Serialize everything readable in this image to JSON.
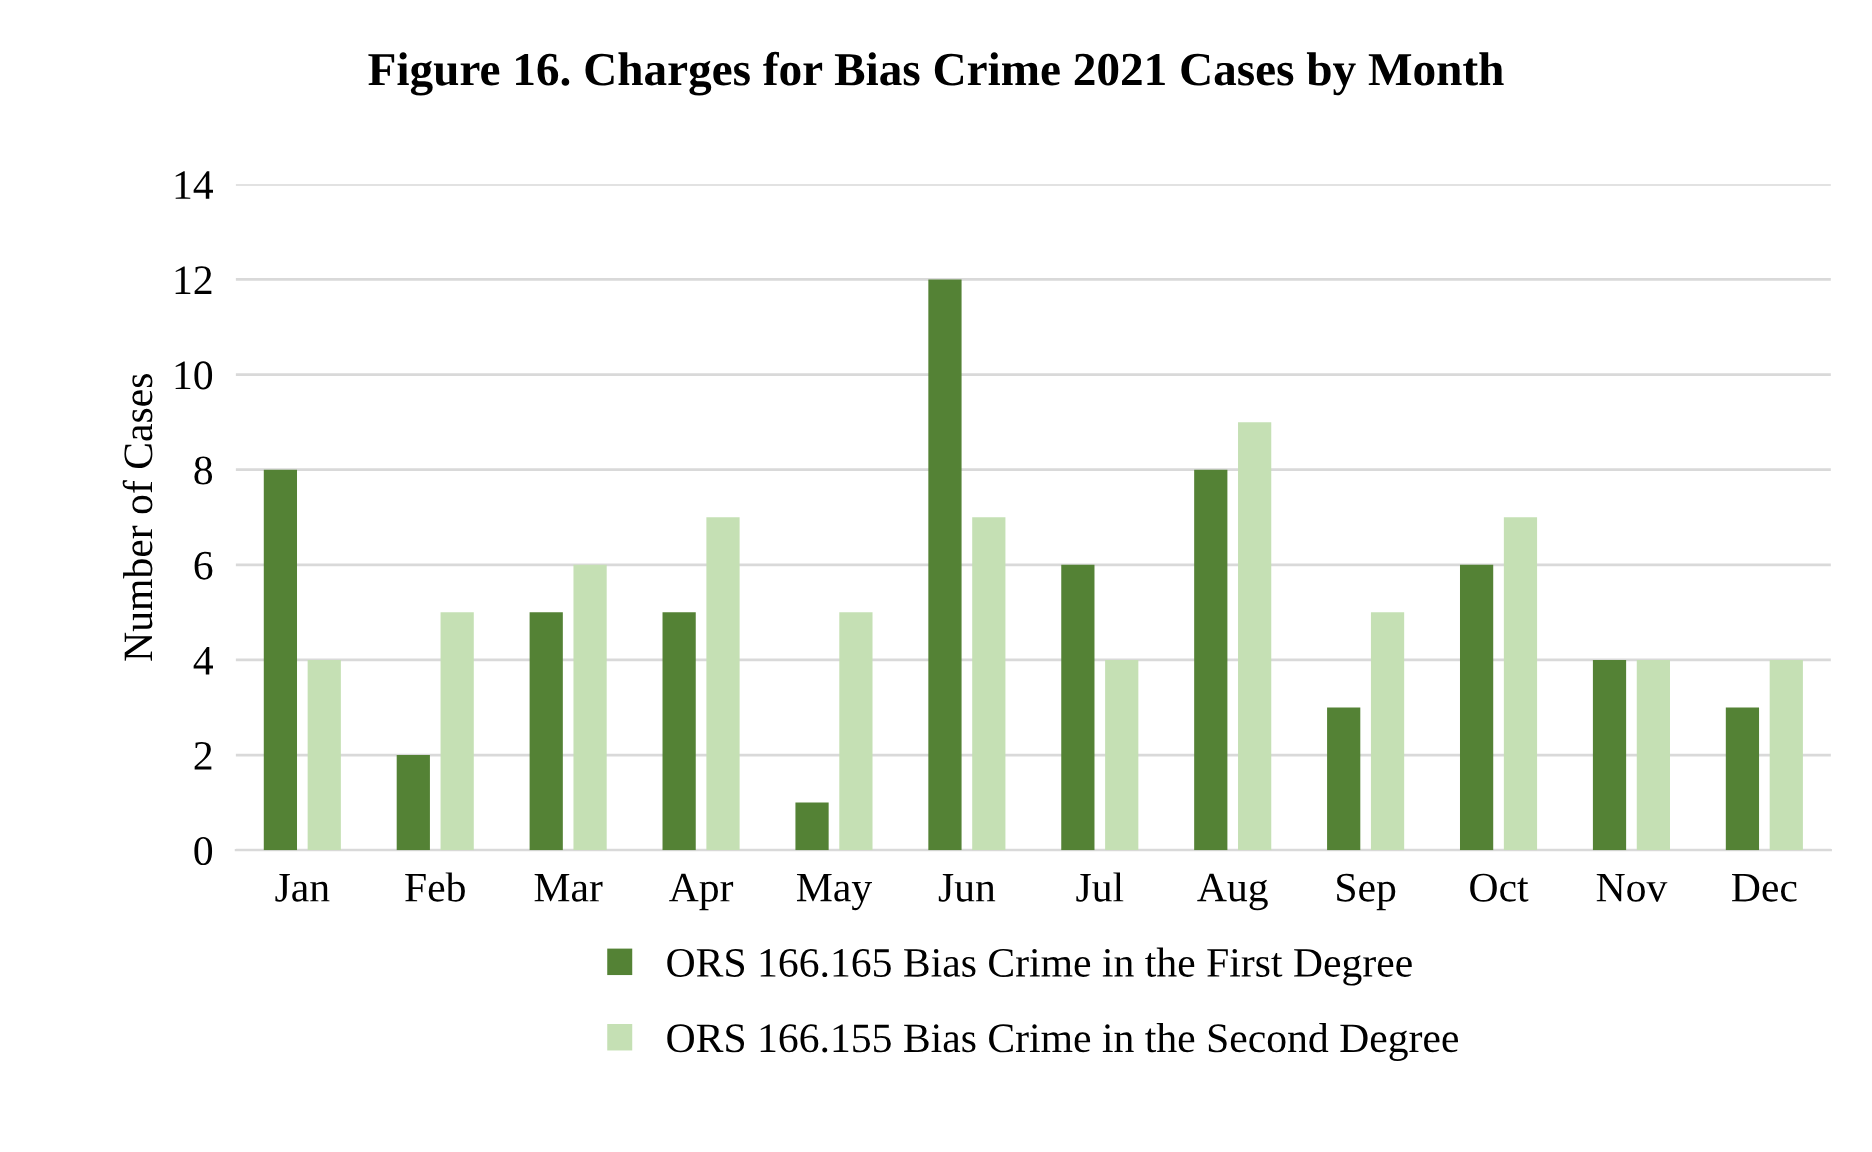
{
  "chart_data": {
    "type": "bar",
    "title": "Figure 16. Charges for Bias Crime 2021 Cases by Month",
    "ylabel": "Number of Cases",
    "categories": [
      "Jan",
      "Feb",
      "Mar",
      "Apr",
      "May",
      "Jun",
      "Jul",
      "Aug",
      "Sep",
      "Oct",
      "Nov",
      "Dec"
    ],
    "series": [
      {
        "name": "ORS 166.165 Bias Crime in the First Degree",
        "color": "#548235",
        "values": [
          8,
          2,
          5,
          5,
          1,
          12,
          6,
          8,
          3,
          6,
          4,
          3
        ]
      },
      {
        "name": "ORS 166.155 Bias Crime in the Second Degree",
        "color": "#c5e0b4",
        "values": [
          4,
          5,
          6,
          7,
          5,
          7,
          4,
          9,
          5,
          7,
          4,
          4
        ]
      }
    ],
    "ylim": [
      0,
      14
    ],
    "yticks": [
      0,
      2,
      4,
      6,
      8,
      10,
      12,
      14
    ],
    "grid": "y",
    "legend": "bottom"
  }
}
